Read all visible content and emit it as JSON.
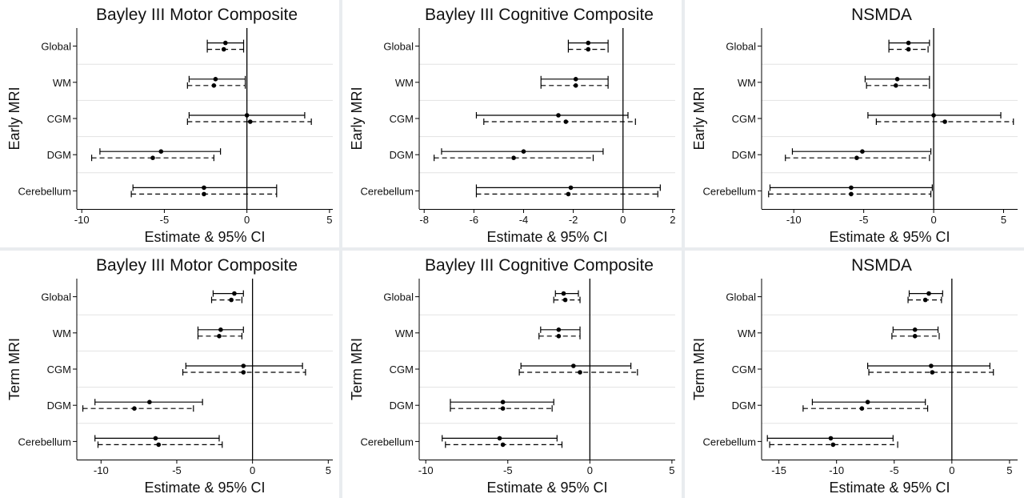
{
  "chart_data": [
    {
      "type": "forest",
      "title": "Bayley III Motor Composite",
      "xlabel": "Estimate & 95% CI",
      "ylabel": "Early MRI",
      "categories": [
        "Global",
        "WM",
        "CGM",
        "DGM",
        "Cerebellum"
      ],
      "xlim": [
        -10.3,
        5.2
      ],
      "xticks": [
        -10,
        -5,
        0,
        5
      ],
      "series": [
        {
          "line": "solid",
          "estimate": [
            -1.3,
            -1.9,
            0.0,
            -5.2,
            -2.6
          ],
          "lower": [
            -2.4,
            -3.5,
            -3.5,
            -8.9,
            -6.9
          ],
          "upper": [
            -0.2,
            -0.1,
            3.5,
            -1.6,
            1.8
          ]
        },
        {
          "line": "dashed",
          "estimate": [
            -1.4,
            -2.0,
            0.2,
            -5.7,
            -2.6
          ],
          "lower": [
            -2.4,
            -3.6,
            -3.6,
            -9.4,
            -7.0
          ],
          "upper": [
            -0.2,
            -0.1,
            3.9,
            -2.0,
            1.8
          ]
        }
      ]
    },
    {
      "type": "forest",
      "title": "Bayley III Cognitive Composite",
      "xlabel": "Estimate & 95% CI",
      "ylabel": "Early MRI",
      "categories": [
        "Global",
        "WM",
        "CGM",
        "DGM",
        "Cerebellum"
      ],
      "xlim": [
        -8.2,
        2.1
      ],
      "xticks": [
        -8,
        -6,
        -4,
        -2,
        0,
        2
      ],
      "series": [
        {
          "line": "solid",
          "estimate": [
            -1.4,
            -1.9,
            -2.6,
            -4.0,
            -2.1
          ],
          "lower": [
            -2.2,
            -3.3,
            -5.9,
            -7.3,
            -5.9
          ],
          "upper": [
            -0.6,
            -0.6,
            0.2,
            -0.8,
            1.5
          ]
        },
        {
          "line": "dashed",
          "estimate": [
            -1.4,
            -1.9,
            -2.3,
            -4.4,
            -2.2
          ],
          "lower": [
            -2.2,
            -3.3,
            -5.6,
            -7.6,
            -5.9
          ],
          "upper": [
            -0.6,
            -0.6,
            0.5,
            -1.2,
            1.4
          ]
        }
      ]
    },
    {
      "type": "forest",
      "title": "NSMDA",
      "xlabel": "Estimate & 95% CI",
      "ylabel": "Early MRI",
      "categories": [
        "Global",
        "WM",
        "CGM",
        "DGM",
        "Cerebellum"
      ],
      "xlim": [
        -12.3,
        6.0
      ],
      "xticks": [
        -10,
        -5,
        0,
        5
      ],
      "series": [
        {
          "line": "solid",
          "estimate": [
            -1.8,
            -2.6,
            0.0,
            -5.1,
            -5.9
          ],
          "lower": [
            -3.2,
            -4.9,
            -4.7,
            -10.1,
            -11.7
          ],
          "upper": [
            -0.3,
            -0.3,
            4.8,
            -0.2,
            -0.1
          ]
        },
        {
          "line": "dashed",
          "estimate": [
            -1.8,
            -2.7,
            0.8,
            -5.5,
            -5.9
          ],
          "lower": [
            -3.2,
            -4.8,
            -4.1,
            -10.6,
            -11.8
          ],
          "upper": [
            -0.4,
            -0.3,
            5.7,
            -0.3,
            -0.2
          ]
        }
      ]
    },
    {
      "type": "forest",
      "title": "Bayley III Motor Composite",
      "xlabel": "Estimate & 95% CI",
      "ylabel": "Term MRI",
      "categories": [
        "Global",
        "WM",
        "CGM",
        "DGM",
        "Cerebellum"
      ],
      "xlim": [
        -11.6,
        5.3
      ],
      "xticks": [
        -10,
        -5,
        0,
        5
      ],
      "series": [
        {
          "line": "solid",
          "estimate": [
            -1.2,
            -2.1,
            -0.6,
            -6.8,
            -6.4
          ],
          "lower": [
            -2.6,
            -3.6,
            -4.4,
            -10.4,
            -10.4
          ],
          "upper": [
            -0.6,
            -0.6,
            3.3,
            -3.3,
            -2.2
          ]
        },
        {
          "line": "dashed",
          "estimate": [
            -1.4,
            -2.2,
            -0.6,
            -7.8,
            -6.2
          ],
          "lower": [
            -2.7,
            -3.6,
            -4.6,
            -11.2,
            -10.2
          ],
          "upper": [
            -0.7,
            -0.7,
            3.5,
            -3.9,
            -2.0
          ]
        }
      ]
    },
    {
      "type": "forest",
      "title": "Bayley III Cognitive Composite",
      "xlabel": "Estimate & 95% CI",
      "ylabel": "Term MRI",
      "categories": [
        "Global",
        "WM",
        "CGM",
        "DGM",
        "Cerebellum"
      ],
      "xlim": [
        -10.4,
        5.2
      ],
      "xticks": [
        -10,
        -5,
        0,
        5
      ],
      "series": [
        {
          "line": "solid",
          "estimate": [
            -1.6,
            -1.9,
            -1.0,
            -5.3,
            -5.5
          ],
          "lower": [
            -2.1,
            -3.0,
            -4.2,
            -8.5,
            -9.0
          ],
          "upper": [
            -0.7,
            -0.6,
            2.5,
            -2.2,
            -2.0
          ]
        },
        {
          "line": "dashed",
          "estimate": [
            -1.5,
            -1.9,
            -0.6,
            -5.3,
            -5.3
          ],
          "lower": [
            -2.2,
            -3.1,
            -4.3,
            -8.5,
            -8.8
          ],
          "upper": [
            -0.6,
            -0.6,
            2.9,
            -2.3,
            -1.7
          ]
        }
      ]
    },
    {
      "type": "forest",
      "title": "NSMDA",
      "xlabel": "Estimate & 95% CI",
      "ylabel": "Term MRI",
      "categories": [
        "Global",
        "WM",
        "CGM",
        "DGM",
        "Cerebellum"
      ],
      "xlim": [
        -16.5,
        5.7
      ],
      "xticks": [
        -15,
        -10,
        -5,
        0,
        5
      ],
      "series": [
        {
          "line": "solid",
          "estimate": [
            -2.0,
            -3.2,
            -1.8,
            -7.3,
            -10.5
          ],
          "lower": [
            -3.7,
            -5.1,
            -7.3,
            -12.1,
            -16.0
          ],
          "upper": [
            -0.8,
            -1.2,
            3.3,
            -2.3,
            -5.1
          ]
        },
        {
          "line": "dashed",
          "estimate": [
            -2.3,
            -3.2,
            -1.7,
            -7.8,
            -10.3
          ],
          "lower": [
            -3.8,
            -5.2,
            -7.2,
            -12.9,
            -15.8
          ],
          "upper": [
            -0.9,
            -1.1,
            3.6,
            -2.1,
            -4.7
          ]
        }
      ]
    }
  ]
}
